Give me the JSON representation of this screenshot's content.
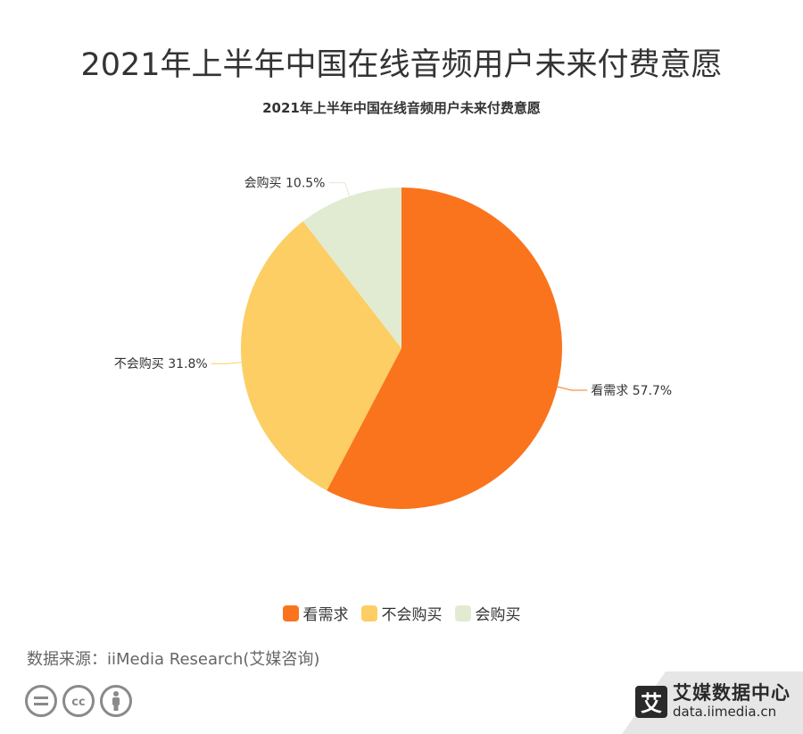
{
  "page": {
    "title": "2021年上半年中国在线音频用户未来付费意愿",
    "source": "数据来源：iiMedia Research(艾媒咨询)"
  },
  "branding": {
    "logo_char": "艾",
    "name": "艾媒数据中心",
    "url": "data.iimedia.cn"
  },
  "license_icons": [
    "equals-icon",
    "cc-icon",
    "person-icon"
  ],
  "chart_data": {
    "type": "pie",
    "title": "2021年上半年中国在线音频用户未来付费意愿",
    "slices": [
      {
        "label": "看需求",
        "value": 57.7,
        "display": "看需求 57.7%",
        "color": "#fa741d"
      },
      {
        "label": "不会购买",
        "value": 31.8,
        "display": "不会购买 31.8%",
        "color": "#fcce64"
      },
      {
        "label": "会购买",
        "value": 10.5,
        "display": "会购买 10.5%",
        "color": "#e1ebd2"
      }
    ],
    "legend_position": "bottom",
    "unit": "%"
  }
}
